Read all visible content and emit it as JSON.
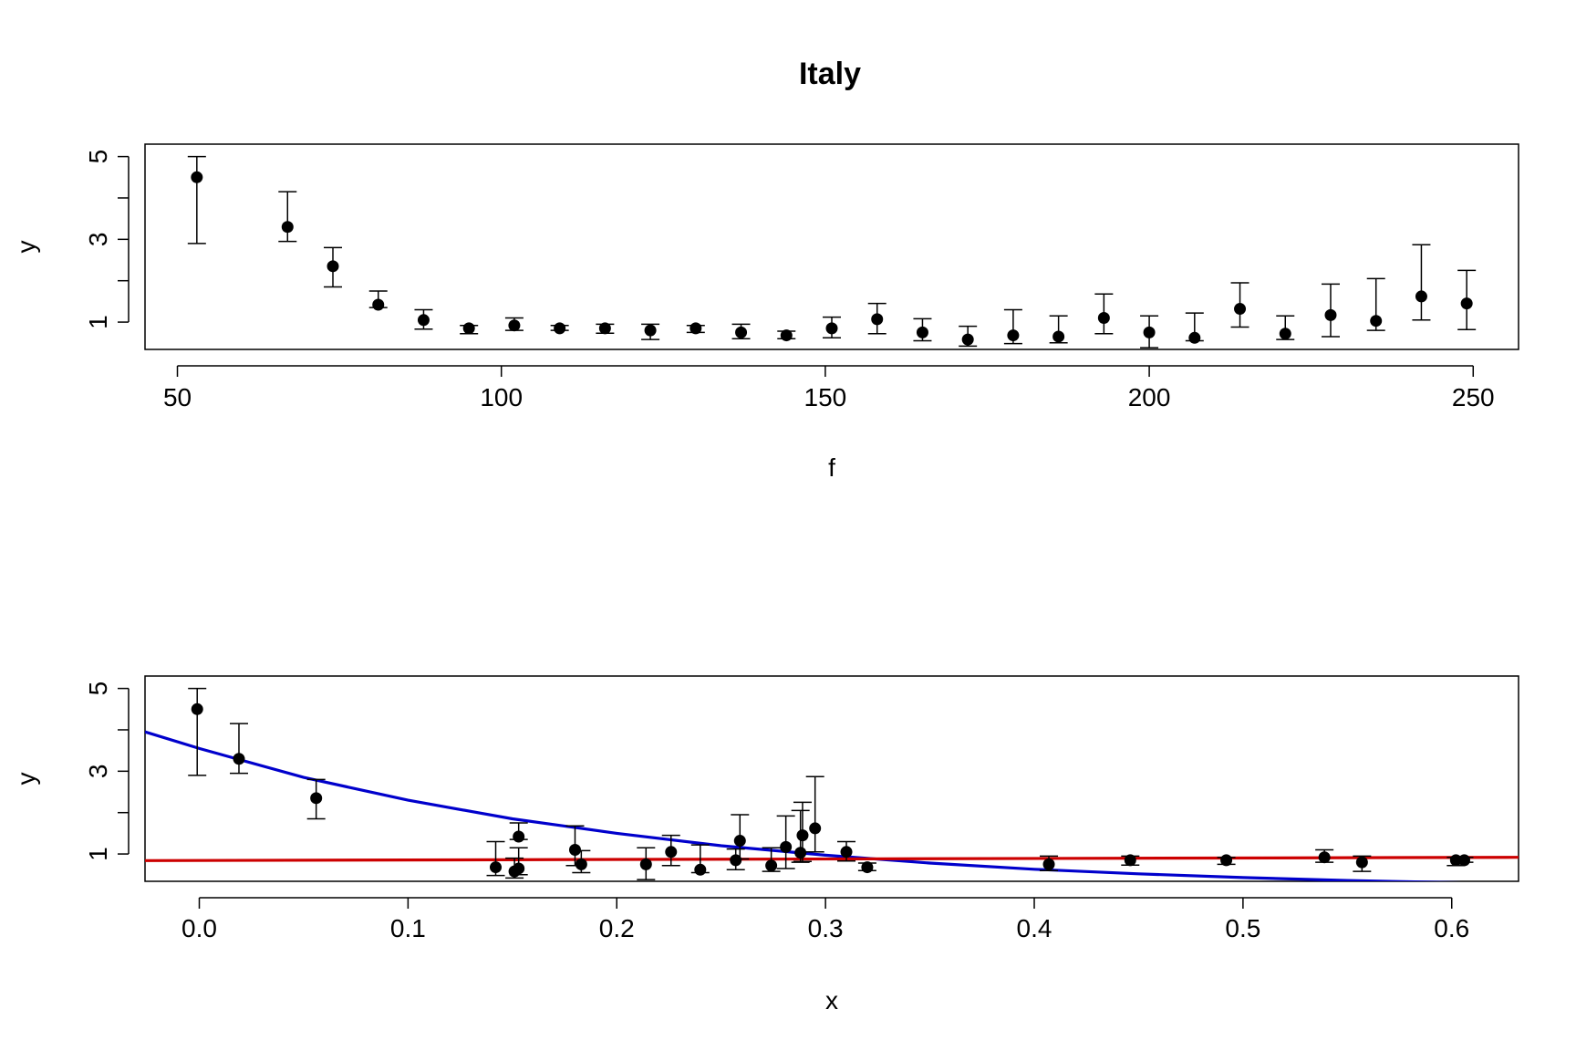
{
  "chart_data": [
    {
      "type": "scatter",
      "title": "Italy",
      "xlabel": "f",
      "ylabel": "y",
      "xlim": [
        45,
        257
      ],
      "ylim": [
        0.34,
        5.3
      ],
      "xticks": [
        50,
        100,
        150,
        200,
        250
      ],
      "xtick_labels": [
        "50",
        "100",
        "150",
        "200",
        "250"
      ],
      "yticks": [
        1,
        3,
        5
      ],
      "ytick_labels": [
        "1",
        "3",
        "5"
      ],
      "grid": false,
      "error_bars": true,
      "points": [
        {
          "x": 53,
          "y": 4.5,
          "lo": 2.9,
          "hi": 5.0
        },
        {
          "x": 67,
          "y": 3.3,
          "lo": 2.95,
          "hi": 4.15
        },
        {
          "x": 74,
          "y": 2.35,
          "lo": 1.85,
          "hi": 2.8
        },
        {
          "x": 81,
          "y": 1.42,
          "lo": 1.35,
          "hi": 1.75
        },
        {
          "x": 88,
          "y": 1.05,
          "lo": 0.83,
          "hi": 1.3
        },
        {
          "x": 95,
          "y": 0.85,
          "lo": 0.72,
          "hi": 0.92
        },
        {
          "x": 102,
          "y": 0.92,
          "lo": 0.8,
          "hi": 1.1
        },
        {
          "x": 109,
          "y": 0.85,
          "lo": 0.8,
          "hi": 0.92
        },
        {
          "x": 116,
          "y": 0.85,
          "lo": 0.73,
          "hi": 0.95
        },
        {
          "x": 123,
          "y": 0.8,
          "lo": 0.58,
          "hi": 0.95
        },
        {
          "x": 130,
          "y": 0.85,
          "lo": 0.75,
          "hi": 0.92
        },
        {
          "x": 137,
          "y": 0.75,
          "lo": 0.6,
          "hi": 0.95
        },
        {
          "x": 144,
          "y": 0.68,
          "lo": 0.6,
          "hi": 0.78
        },
        {
          "x": 151,
          "y": 0.85,
          "lo": 0.62,
          "hi": 1.12
        },
        {
          "x": 158,
          "y": 1.07,
          "lo": 0.72,
          "hi": 1.45
        },
        {
          "x": 165,
          "y": 0.75,
          "lo": 0.55,
          "hi": 1.08
        },
        {
          "x": 172,
          "y": 0.58,
          "lo": 0.42,
          "hi": 0.9
        },
        {
          "x": 179,
          "y": 0.68,
          "lo": 0.48,
          "hi": 1.3
        },
        {
          "x": 186,
          "y": 0.65,
          "lo": 0.5,
          "hi": 1.15
        },
        {
          "x": 193,
          "y": 1.1,
          "lo": 0.72,
          "hi": 1.68
        },
        {
          "x": 200,
          "y": 0.75,
          "lo": 0.38,
          "hi": 1.15
        },
        {
          "x": 207,
          "y": 0.62,
          "lo": 0.55,
          "hi": 1.22
        },
        {
          "x": 214,
          "y": 1.32,
          "lo": 0.88,
          "hi": 1.95
        },
        {
          "x": 221,
          "y": 0.72,
          "lo": 0.58,
          "hi": 1.15
        },
        {
          "x": 228,
          "y": 1.17,
          "lo": 0.65,
          "hi": 1.92
        },
        {
          "x": 235,
          "y": 1.03,
          "lo": 0.8,
          "hi": 2.05
        },
        {
          "x": 242,
          "y": 1.62,
          "lo": 1.05,
          "hi": 2.87
        },
        {
          "x": 249,
          "y": 1.45,
          "lo": 0.82,
          "hi": 2.25
        }
      ]
    },
    {
      "type": "scatter",
      "title": "",
      "xlabel": "x",
      "ylabel": "y",
      "xlim": [
        -0.026,
        0.632
      ],
      "ylim": [
        0.34,
        5.3
      ],
      "xticks": [
        0.0,
        0.1,
        0.2,
        0.3,
        0.4,
        0.5,
        0.6
      ],
      "xtick_labels": [
        "0.0",
        "0.1",
        "0.2",
        "0.3",
        "0.4",
        "0.5",
        "0.6"
      ],
      "yticks": [
        1,
        3,
        5
      ],
      "ytick_labels": [
        "1",
        "3",
        "5"
      ],
      "grid": false,
      "error_bars": true,
      "points": [
        {
          "x": -0.001,
          "y": 4.5,
          "lo": 2.9,
          "hi": 5.0
        },
        {
          "x": 0.019,
          "y": 3.3,
          "lo": 2.95,
          "hi": 4.15
        },
        {
          "x": 0.056,
          "y": 2.35,
          "lo": 1.85,
          "hi": 2.8
        },
        {
          "x": 0.142,
          "y": 0.68,
          "lo": 0.48,
          "hi": 1.3
        },
        {
          "x": 0.151,
          "y": 0.58,
          "lo": 0.42,
          "hi": 0.9
        },
        {
          "x": 0.153,
          "y": 0.65,
          "lo": 0.5,
          "hi": 1.15
        },
        {
          "x": 0.153,
          "y": 1.42,
          "lo": 1.35,
          "hi": 1.75
        },
        {
          "x": 0.18,
          "y": 1.1,
          "lo": 0.72,
          "hi": 1.68
        },
        {
          "x": 0.183,
          "y": 0.75,
          "lo": 0.55,
          "hi": 1.08
        },
        {
          "x": 0.214,
          "y": 0.75,
          "lo": 0.38,
          "hi": 1.15
        },
        {
          "x": 0.226,
          "y": 1.05,
          "lo": 0.72,
          "hi": 1.45
        },
        {
          "x": 0.24,
          "y": 0.62,
          "lo": 0.55,
          "hi": 1.22
        },
        {
          "x": 0.257,
          "y": 0.85,
          "lo": 0.62,
          "hi": 1.12
        },
        {
          "x": 0.259,
          "y": 1.32,
          "lo": 0.88,
          "hi": 1.95
        },
        {
          "x": 0.274,
          "y": 0.72,
          "lo": 0.58,
          "hi": 1.15
        },
        {
          "x": 0.281,
          "y": 1.17,
          "lo": 0.65,
          "hi": 1.92
        },
        {
          "x": 0.288,
          "y": 1.03,
          "lo": 0.8,
          "hi": 2.05
        },
        {
          "x": 0.289,
          "y": 1.45,
          "lo": 0.82,
          "hi": 2.25
        },
        {
          "x": 0.295,
          "y": 1.62,
          "lo": 1.05,
          "hi": 2.87
        },
        {
          "x": 0.31,
          "y": 1.05,
          "lo": 0.83,
          "hi": 1.3
        },
        {
          "x": 0.32,
          "y": 0.68,
          "lo": 0.6,
          "hi": 0.78
        },
        {
          "x": 0.407,
          "y": 0.75,
          "lo": 0.6,
          "hi": 0.95
        },
        {
          "x": 0.446,
          "y": 0.85,
          "lo": 0.73,
          "hi": 0.95
        },
        {
          "x": 0.492,
          "y": 0.85,
          "lo": 0.75,
          "hi": 0.92
        },
        {
          "x": 0.539,
          "y": 0.92,
          "lo": 0.8,
          "hi": 1.1
        },
        {
          "x": 0.557,
          "y": 0.8,
          "lo": 0.58,
          "hi": 0.95
        },
        {
          "x": 0.602,
          "y": 0.85,
          "lo": 0.72,
          "hi": 0.92
        },
        {
          "x": 0.606,
          "y": 0.85,
          "lo": 0.8,
          "hi": 0.92
        }
      ],
      "curves": [
        {
          "color": "#0000cc",
          "x": [
            -0.026,
            0.0,
            0.05,
            0.1,
            0.15,
            0.2,
            0.25,
            0.3,
            0.35,
            0.4,
            0.45,
            0.5,
            0.55,
            0.6,
            0.632
          ],
          "y": [
            3.95,
            3.55,
            2.85,
            2.3,
            1.85,
            1.5,
            1.2,
            0.97,
            0.78,
            0.63,
            0.52,
            0.43,
            0.36,
            0.31,
            0.28
          ]
        },
        {
          "color": "#cc0000",
          "x": [
            -0.026,
            0.632
          ],
          "y": [
            0.84,
            0.92
          ]
        }
      ]
    }
  ]
}
